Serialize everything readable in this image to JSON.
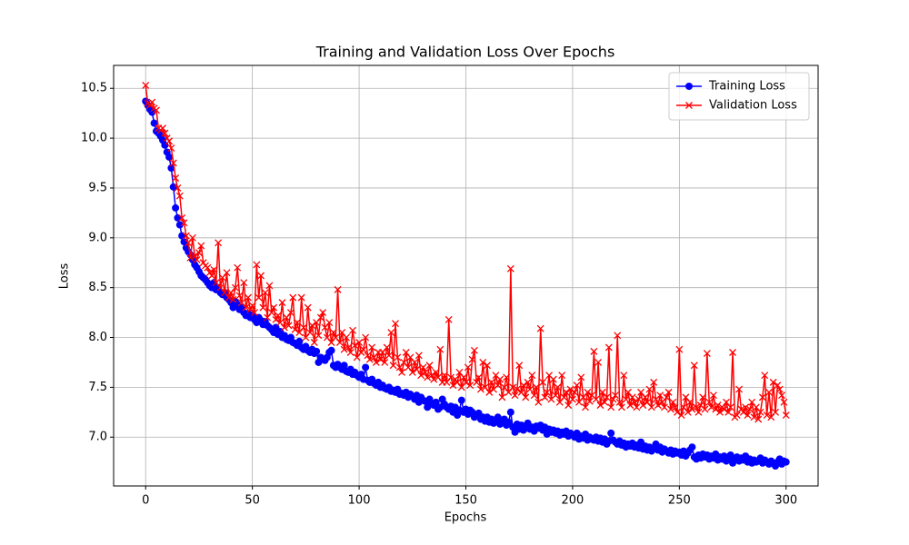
{
  "chart_data": {
    "type": "line",
    "title": "Training and Validation Loss Over Epochs",
    "x_label": "Epochs",
    "y_label": "Loss",
    "x": [
      0,
      1,
      2,
      3,
      4,
      5,
      6,
      7,
      8,
      9,
      10,
      11,
      12,
      13,
      14,
      15,
      16,
      17,
      18,
      19,
      20,
      21,
      22,
      23,
      24,
      25,
      26,
      27,
      28,
      29,
      30,
      31,
      32,
      33,
      34,
      35,
      36,
      37,
      38,
      39,
      40,
      41,
      42,
      43,
      44,
      45,
      46,
      47,
      48,
      49,
      50,
      51,
      52,
      53,
      54,
      55,
      56,
      57,
      58,
      59,
      60,
      61,
      62,
      63,
      64,
      65,
      66,
      67,
      68,
      69,
      70,
      71,
      72,
      73,
      74,
      75,
      76,
      77,
      78,
      79,
      80,
      81,
      82,
      83,
      84,
      85,
      86,
      87,
      88,
      89,
      90,
      91,
      92,
      93,
      94,
      95,
      96,
      97,
      98,
      99,
      100,
      101,
      102,
      103,
      104,
      105,
      106,
      107,
      108,
      109,
      110,
      111,
      112,
      113,
      114,
      115,
      116,
      117,
      118,
      119,
      120,
      121,
      122,
      123,
      124,
      125,
      126,
      127,
      128,
      129,
      130,
      131,
      132,
      133,
      134,
      135,
      136,
      137,
      138,
      139,
      140,
      141,
      142,
      143,
      144,
      145,
      146,
      147,
      148,
      149,
      150,
      151,
      152,
      153,
      154,
      155,
      156,
      157,
      158,
      159,
      160,
      161,
      162,
      163,
      164,
      165,
      166,
      167,
      168,
      169,
      170,
      171,
      172,
      173,
      174,
      175,
      176,
      177,
      178,
      179,
      180,
      181,
      182,
      183,
      184,
      185,
      186,
      187,
      188,
      189,
      190,
      191,
      192,
      193,
      194,
      195,
      196,
      197,
      198,
      199,
      200,
      201,
      202,
      203,
      204,
      205,
      206,
      207,
      208,
      209,
      210,
      211,
      212,
      213,
      214,
      215,
      216,
      217,
      218,
      219,
      220,
      221,
      222,
      223,
      224,
      225,
      226,
      227,
      228,
      229,
      230,
      231,
      232,
      233,
      234,
      235,
      236,
      237,
      238,
      239,
      240,
      241,
      242,
      243,
      244,
      245,
      246,
      247,
      248,
      249,
      250,
      251,
      252,
      253,
      254,
      255,
      256,
      257,
      258,
      259,
      260,
      261,
      262,
      263,
      264,
      265,
      266,
      267,
      268,
      269,
      270,
      271,
      272,
      273,
      274,
      275,
      276,
      277,
      278,
      279,
      280,
      281,
      282,
      283,
      284,
      285,
      286,
      287,
      288,
      289,
      290,
      291,
      292,
      293,
      294,
      295,
      296,
      297,
      298,
      299,
      300
    ],
    "series": [
      {
        "name": "Training Loss",
        "color": "#0000ff",
        "marker": "circle",
        "values": [
          10.37,
          10.33,
          10.29,
          10.26,
          10.15,
          10.07,
          10.05,
          10.02,
          9.98,
          9.93,
          9.86,
          9.81,
          9.7,
          9.51,
          9.3,
          9.2,
          9.13,
          9.02,
          8.96,
          8.9,
          8.86,
          8.83,
          8.78,
          8.73,
          8.7,
          8.66,
          8.62,
          8.6,
          8.58,
          8.55,
          8.52,
          8.5,
          8.55,
          8.48,
          8.5,
          8.45,
          8.43,
          8.45,
          8.4,
          8.38,
          8.35,
          8.3,
          8.36,
          8.33,
          8.28,
          8.3,
          8.25,
          8.22,
          8.24,
          8.2,
          8.22,
          8.18,
          8.15,
          8.2,
          8.17,
          8.13,
          8.16,
          8.12,
          8.1,
          8.08,
          8.05,
          8.1,
          8.03,
          8.06,
          8.0,
          8.02,
          7.98,
          7.97,
          8.0,
          7.95,
          7.94,
          7.92,
          7.96,
          7.9,
          7.88,
          7.91,
          7.87,
          7.85,
          7.88,
          7.84,
          7.86,
          7.75,
          7.8,
          7.78,
          7.77,
          7.8,
          7.85,
          7.87,
          7.72,
          7.7,
          7.73,
          7.7,
          7.68,
          7.72,
          7.66,
          7.65,
          7.68,
          7.63,
          7.65,
          7.62,
          7.6,
          7.63,
          7.58,
          7.7,
          7.57,
          7.55,
          7.58,
          7.54,
          7.52,
          7.55,
          7.5,
          7.52,
          7.49,
          7.48,
          7.5,
          7.46,
          7.47,
          7.45,
          7.48,
          7.43,
          7.44,
          7.42,
          7.45,
          7.4,
          7.43,
          7.41,
          7.38,
          7.42,
          7.35,
          7.4,
          7.37,
          7.36,
          7.3,
          7.38,
          7.34,
          7.32,
          7.35,
          7.28,
          7.3,
          7.38,
          7.33,
          7.3,
          7.28,
          7.31,
          7.25,
          7.3,
          7.22,
          7.27,
          7.37,
          7.25,
          7.28,
          7.23,
          7.27,
          7.25,
          7.2,
          7.22,
          7.24,
          7.18,
          7.2,
          7.16,
          7.2,
          7.15,
          7.18,
          7.14,
          7.17,
          7.2,
          7.13,
          7.15,
          7.18,
          7.12,
          7.15,
          7.25,
          7.1,
          7.05,
          7.13,
          7.08,
          7.12,
          7.07,
          7.1,
          7.14,
          7.08,
          7.1,
          7.06,
          7.11,
          7.09,
          7.12,
          7.07,
          7.1,
          7.03,
          7.08,
          7.05,
          7.07,
          7.04,
          7.06,
          7.02,
          7.05,
          7.03,
          7.06,
          7.01,
          7.04,
          7.02,
          7.0,
          7.04,
          6.98,
          7.01,
          6.99,
          7.03,
          6.97,
          7.0,
          6.98,
          6.97,
          7.0,
          6.96,
          6.99,
          6.95,
          6.98,
          6.93,
          6.96,
          7.04,
          6.97,
          6.95,
          6.93,
          6.96,
          6.92,
          6.94,
          6.9,
          6.93,
          6.91,
          6.94,
          6.9,
          6.92,
          6.89,
          6.95,
          6.88,
          6.91,
          6.87,
          6.9,
          6.86,
          6.89,
          6.93,
          6.87,
          6.9,
          6.85,
          6.88,
          6.86,
          6.84,
          6.87,
          6.83,
          6.86,
          6.84,
          6.85,
          6.82,
          6.86,
          6.81,
          6.84,
          6.87,
          6.9,
          6.8,
          6.78,
          6.82,
          6.79,
          6.83,
          6.8,
          6.82,
          6.78,
          6.81,
          6.79,
          6.83,
          6.77,
          6.8,
          6.78,
          6.81,
          6.76,
          6.79,
          6.82,
          6.74,
          6.78,
          6.8,
          6.76,
          6.79,
          6.77,
          6.81,
          6.75,
          6.78,
          6.74,
          6.77,
          6.75,
          6.76,
          6.79,
          6.74,
          6.77,
          6.75,
          6.73,
          6.76,
          6.74,
          6.71,
          6.75,
          6.78,
          6.73,
          6.76,
          6.75
        ]
      },
      {
        "name": "Validation Loss",
        "color": "#ff0000",
        "marker": "x",
        "values": [
          10.53,
          10.35,
          10.33,
          10.36,
          10.3,
          10.28,
          10.1,
          10.08,
          10.1,
          10.05,
          10.0,
          9.97,
          9.9,
          9.75,
          9.6,
          9.5,
          9.42,
          9.2,
          9.15,
          9.02,
          8.95,
          8.8,
          9.0,
          8.82,
          8.78,
          8.85,
          8.92,
          8.75,
          8.72,
          8.7,
          8.65,
          8.62,
          8.68,
          8.55,
          8.95,
          8.5,
          8.6,
          8.45,
          8.65,
          8.4,
          8.45,
          8.38,
          8.5,
          8.7,
          8.42,
          8.35,
          8.55,
          8.3,
          8.4,
          8.28,
          8.32,
          8.25,
          8.73,
          8.4,
          8.62,
          8.3,
          8.45,
          8.2,
          8.52,
          8.25,
          8.3,
          8.18,
          8.22,
          8.15,
          8.35,
          8.1,
          8.2,
          8.12,
          8.25,
          8.4,
          8.08,
          8.15,
          8.05,
          8.4,
          8.1,
          8.0,
          8.3,
          8.05,
          8.12,
          7.95,
          8.15,
          8.02,
          8.2,
          8.25,
          8.1,
          8.0,
          8.15,
          7.95,
          8.05,
          8.0,
          8.48,
          7.95,
          8.05,
          7.88,
          8.0,
          7.9,
          7.85,
          8.07,
          7.92,
          7.8,
          7.95,
          7.85,
          7.88,
          8.0,
          7.82,
          7.78,
          7.9,
          7.8,
          7.75,
          7.85,
          7.78,
          7.85,
          7.75,
          7.9,
          7.82,
          8.05,
          7.72,
          8.14,
          7.8,
          7.7,
          7.65,
          7.75,
          7.85,
          7.7,
          7.8,
          7.65,
          7.75,
          7.68,
          7.82,
          7.62,
          7.7,
          7.65,
          7.6,
          7.72,
          7.62,
          7.58,
          7.65,
          7.6,
          7.88,
          7.55,
          7.62,
          7.55,
          8.18,
          7.6,
          7.52,
          7.58,
          7.55,
          7.65,
          7.5,
          7.6,
          7.55,
          7.7,
          7.52,
          7.78,
          7.87,
          7.55,
          7.6,
          7.48,
          7.75,
          7.5,
          7.72,
          7.45,
          7.55,
          7.48,
          7.62,
          7.52,
          7.58,
          7.4,
          7.5,
          7.6,
          7.45,
          8.69,
          7.5,
          7.42,
          7.48,
          7.72,
          7.45,
          7.52,
          7.4,
          7.55,
          7.48,
          7.62,
          7.42,
          7.5,
          7.35,
          8.09,
          7.55,
          7.4,
          7.45,
          7.62,
          7.38,
          7.58,
          7.42,
          7.5,
          7.35,
          7.62,
          7.4,
          7.45,
          7.32,
          7.48,
          7.38,
          7.45,
          7.52,
          7.35,
          7.6,
          7.4,
          7.3,
          7.45,
          7.36,
          7.42,
          7.86,
          7.38,
          7.75,
          7.32,
          7.45,
          7.35,
          7.4,
          7.9,
          7.3,
          7.38,
          7.42,
          8.02,
          7.35,
          7.3,
          7.62,
          7.38,
          7.45,
          7.32,
          7.4,
          7.35,
          7.3,
          7.38,
          7.45,
          7.32,
          7.4,
          7.35,
          7.48,
          7.3,
          7.55,
          7.38,
          7.32,
          7.42,
          7.35,
          7.3,
          7.4,
          7.45,
          7.28,
          7.35,
          7.3,
          7.25,
          7.88,
          7.22,
          7.3,
          7.4,
          7.25,
          7.35,
          7.28,
          7.72,
          7.3,
          7.25,
          7.32,
          7.4,
          7.28,
          7.84,
          7.35,
          7.3,
          7.42,
          7.28,
          7.32,
          7.25,
          7.3,
          7.28,
          7.35,
          7.25,
          7.3,
          7.85,
          7.2,
          7.22,
          7.48,
          7.28,
          7.25,
          7.3,
          7.22,
          7.28,
          7.35,
          7.2,
          7.3,
          7.18,
          7.25,
          7.4,
          7.62,
          7.22,
          7.45,
          7.2,
          7.55,
          7.25,
          7.52,
          7.48,
          7.42,
          7.35,
          7.22
        ]
      }
    ],
    "xlim": [
      -15,
      315
    ],
    "ylim": [
      6.51,
      10.73
    ],
    "xticks": [
      0,
      50,
      100,
      150,
      200,
      250,
      300
    ],
    "yticks": [
      {
        "value": 7,
        "label": "7.0"
      },
      7.5,
      {
        "value": 8,
        "label": "8.0"
      },
      8.5,
      {
        "value": 9,
        "label": "9.0"
      },
      9.5,
      {
        "value": 10,
        "label": "10.0"
      },
      10.5
    ],
    "grid": true,
    "legend": "upper right"
  }
}
